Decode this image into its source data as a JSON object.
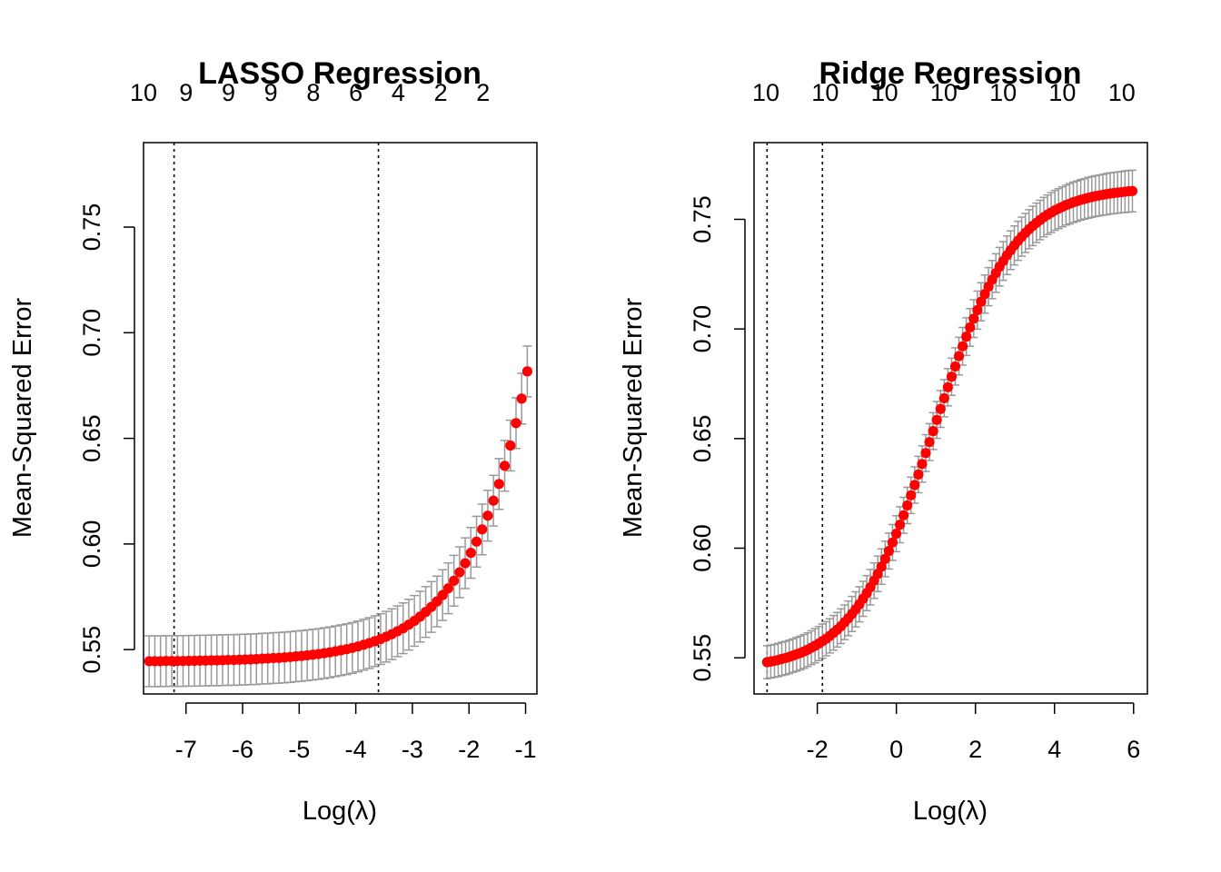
{
  "chart_data": [
    {
      "type": "scatter",
      "title": "LASSO Regression",
      "xlabel": "Log(λ)",
      "ylabel": "Mean-Squared Error",
      "xlim": [
        -7.75,
        -0.8
      ],
      "ylim": [
        0.529,
        0.79
      ],
      "x_ticks": [
        -7,
        -6,
        -5,
        -4,
        -3,
        -2,
        -1
      ],
      "x_tick_labels": [
        "-7",
        "-6",
        "-5",
        "-4",
        "-3",
        "-2",
        "-1"
      ],
      "y_ticks": [
        0.55,
        0.6,
        0.65,
        0.7,
        0.75
      ],
      "y_tick_labels": [
        "0.55",
        "0.60",
        "0.65",
        "0.70",
        "0.75"
      ],
      "top_ticks": [
        -7.75,
        -7.0,
        -6.25,
        -5.5,
        -4.75,
        -4.0,
        -3.25,
        -2.5,
        -1.75
      ],
      "top_tick_labels": [
        "10",
        "9",
        "9",
        "9",
        "8",
        "6",
        "4",
        "2",
        "2"
      ],
      "vlines": [
        -7.21,
        -3.6
      ],
      "point_color": "#ff0000",
      "errorbar_color": "#999999",
      "grid": false,
      "curve": {
        "x_min": -7.65,
        "x_max": -0.97,
        "n": 68,
        "base": 0.5443,
        "amp": 0.0103,
        "rate": 0.985,
        "x_ref": -3.6,
        "se_low": 0.012,
        "se_high": 0.012
      },
      "series": [
        {
          "x": [],
          "y": [],
          "err": []
        }
      ]
    },
    {
      "type": "scatter",
      "title": "Ridge Regression",
      "xlabel": "Log(λ)",
      "ylabel": "Mean-Squared Error",
      "xlim": [
        -3.6,
        6.35
      ],
      "ylim": [
        0.5335,
        0.785
      ],
      "x_ticks": [
        -2,
        0,
        2,
        4,
        6
      ],
      "x_tick_labels": [
        "-2",
        "0",
        "2",
        "4",
        "6"
      ],
      "y_ticks": [
        0.55,
        0.6,
        0.65,
        0.7,
        0.75
      ],
      "y_tick_labels": [
        "0.55",
        "0.60",
        "0.65",
        "0.70",
        "0.75"
      ],
      "top_ticks": [
        -3.3,
        -1.8,
        -0.3,
        1.2,
        2.7,
        4.2,
        5.7
      ],
      "top_tick_labels": [
        "10",
        "10",
        "10",
        "10",
        "10",
        "10",
        "10"
      ],
      "vlines": [
        -3.27,
        -1.87
      ],
      "point_color": "#ff0000",
      "errorbar_color": "#999999",
      "grid": false,
      "curve": {
        "x_min": -3.27,
        "x_max": 5.97,
        "n": 100,
        "low": 0.5445,
        "high": 0.7645,
        "center": 0.95,
        "slope": 0.98,
        "se_low": 0.0075,
        "se_high": 0.0095
      },
      "series": [
        {
          "x": [],
          "y": [],
          "err": []
        }
      ]
    }
  ]
}
